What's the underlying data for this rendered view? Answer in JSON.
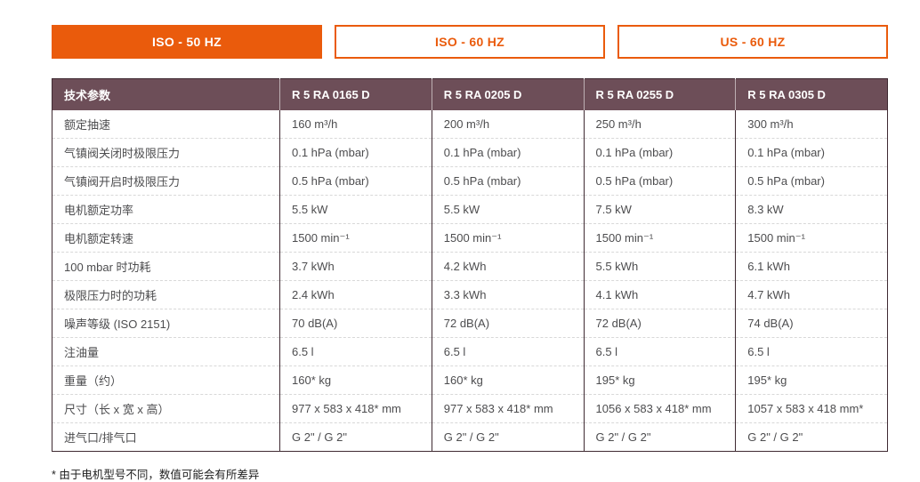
{
  "colors": {
    "accent_orange": "#EA5B0C",
    "header_plum": "#6D4E58",
    "table_frame": "#3F2A32",
    "body_text": "#4D4D4F"
  },
  "tabs": [
    {
      "label": "ISO - 50 HZ",
      "active": true
    },
    {
      "label": "ISO - 60 HZ",
      "active": false
    },
    {
      "label": "US - 60 HZ",
      "active": false
    }
  ],
  "table": {
    "header": [
      "技术参数",
      "R 5 RA 0165 D",
      "R 5 RA 0205 D",
      "R 5 RA 0255 D",
      "R 5 RA 0305 D"
    ],
    "rows": [
      {
        "label": "额定抽速",
        "values": [
          "160 m³/h",
          "200 m³/h",
          "250 m³/h",
          "300 m³/h"
        ]
      },
      {
        "label": "气镇阀关闭时极限压力",
        "values": [
          "0.1 hPa (mbar)",
          "0.1 hPa (mbar)",
          "0.1 hPa (mbar)",
          "0.1 hPa (mbar)"
        ]
      },
      {
        "label": "气镇阀开启时极限压力",
        "values": [
          "0.5 hPa (mbar)",
          "0.5 hPa (mbar)",
          "0.5 hPa (mbar)",
          "0.5 hPa (mbar)"
        ]
      },
      {
        "label": "电机额定功率",
        "values": [
          "5.5 kW",
          "5.5 kW",
          "7.5 kW",
          "8.3 kW"
        ]
      },
      {
        "label": "电机额定转速",
        "values": [
          "1500 min⁻¹",
          "1500 min⁻¹",
          "1500 min⁻¹",
          "1500 min⁻¹"
        ]
      },
      {
        "label": "100 mbar 时功耗",
        "values": [
          "3.7 kWh",
          "4.2 kWh",
          "5.5 kWh",
          "6.1 kWh"
        ]
      },
      {
        "label": "极限压力时的功耗",
        "values": [
          "2.4 kWh",
          "3.3 kWh",
          "4.1 kWh",
          "4.7 kWh"
        ]
      },
      {
        "label": "噪声等级 (ISO 2151)",
        "values": [
          "70 dB(A)",
          "72 dB(A)",
          "72 dB(A)",
          "74 dB(A)"
        ]
      },
      {
        "label": "注油量",
        "values": [
          "6.5 l",
          "6.5 l",
          "6.5 l",
          "6.5 l"
        ]
      },
      {
        "label": "重量（约）",
        "values": [
          "160* kg",
          "160* kg",
          "195* kg",
          "195* kg"
        ]
      },
      {
        "label": "尺寸（长 x 宽 x 高）",
        "values": [
          "977 x 583 x 418* mm",
          "977 x 583 x 418* mm",
          "1056 x 583 x 418* mm",
          "1057 x 583 x 418 mm*"
        ]
      },
      {
        "label": "进气口/排气口",
        "values": [
          "G 2\" / G 2\"",
          "G 2\" / G 2\"",
          "G 2\" / G 2\"",
          "G 2\" / G 2\""
        ]
      }
    ]
  },
  "footnote": "* 由于电机型号不同，数值可能会有所差异"
}
